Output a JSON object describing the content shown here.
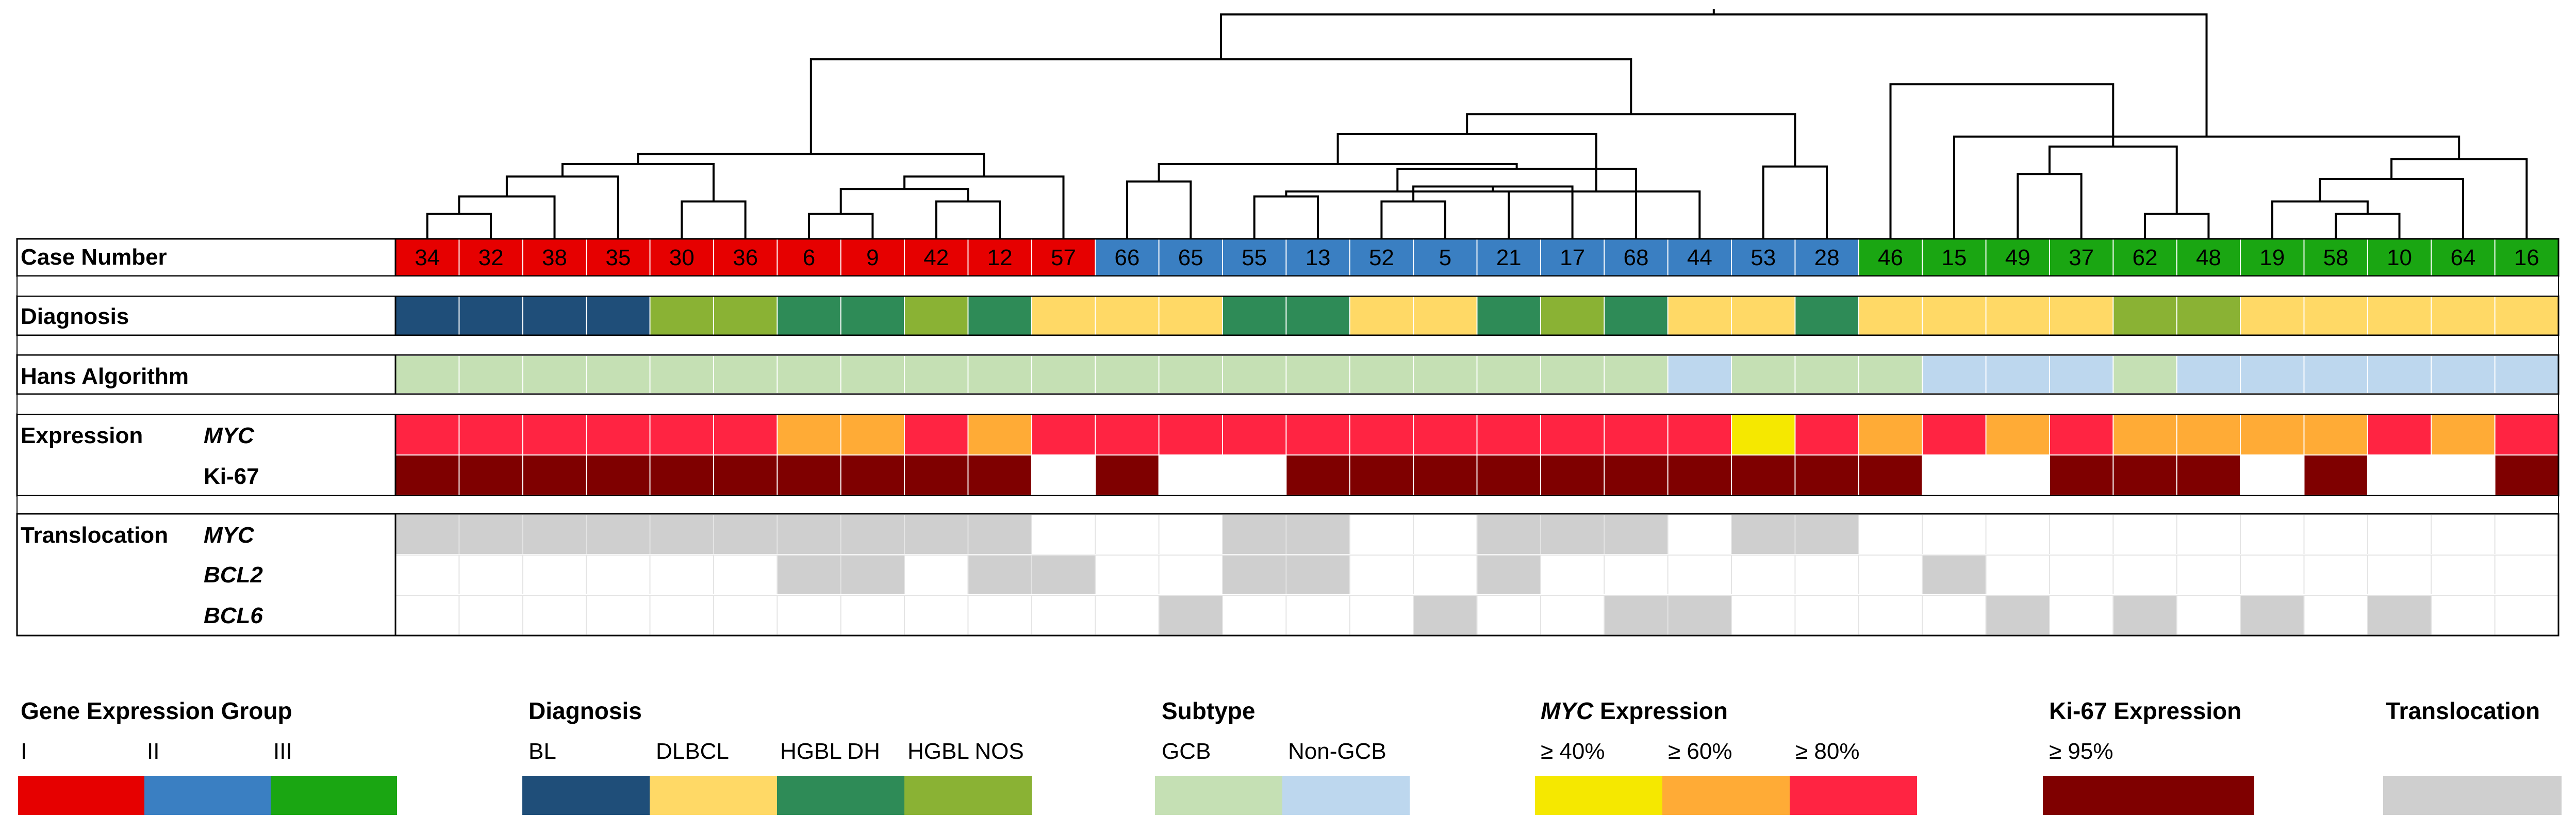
{
  "rows": {
    "case_number": "Case Number",
    "diagnosis": "Diagnosis",
    "hans": "Hans Algorithm",
    "expression": "Expression",
    "expr_myc": "MYC",
    "expr_ki67": "Ki-67",
    "translocation": "Translocation",
    "trans_myc": "MYC",
    "trans_bcl2": "BCL2",
    "trans_bcl6": "BCL6"
  },
  "colors": {
    "group": {
      "I": "#e60000",
      "II": "#3a7fc2",
      "III": "#1aa612"
    },
    "diagnosis": {
      "BL": "#1f4e79",
      "DLBCL": "#ffd966",
      "HGBL DH": "#2e8b57",
      "HGBL NOS": "#8ab234"
    },
    "subtype": {
      "GCB": "#c5e0b4",
      "Non-GCB": "#bdd7ee"
    },
    "myc": {
      "40": "#f5e800",
      "60": "#ffab36",
      "80": "#ff2442",
      "0": "#ffffff"
    },
    "ki67": {
      "95": "#7f0000",
      "0": "#ffffff"
    },
    "translocation": {
      "1": "#cfcfcf",
      "0": "#ffffff"
    }
  },
  "cases": [
    {
      "id": "34",
      "group": "I",
      "dx": "BL",
      "hans": "GCB",
      "myc": "80",
      "ki67": "95",
      "t_myc": 1,
      "t_bcl2": 0,
      "t_bcl6": 0
    },
    {
      "id": "32",
      "group": "I",
      "dx": "BL",
      "hans": "GCB",
      "myc": "80",
      "ki67": "95",
      "t_myc": 1,
      "t_bcl2": 0,
      "t_bcl6": 0
    },
    {
      "id": "38",
      "group": "I",
      "dx": "BL",
      "hans": "GCB",
      "myc": "80",
      "ki67": "95",
      "t_myc": 1,
      "t_bcl2": 0,
      "t_bcl6": 0
    },
    {
      "id": "35",
      "group": "I",
      "dx": "BL",
      "hans": "GCB",
      "myc": "80",
      "ki67": "95",
      "t_myc": 1,
      "t_bcl2": 0,
      "t_bcl6": 0
    },
    {
      "id": "30",
      "group": "I",
      "dx": "HGBL NOS",
      "hans": "GCB",
      "myc": "80",
      "ki67": "95",
      "t_myc": 1,
      "t_bcl2": 0,
      "t_bcl6": 0
    },
    {
      "id": "36",
      "group": "I",
      "dx": "HGBL NOS",
      "hans": "GCB",
      "myc": "80",
      "ki67": "95",
      "t_myc": 1,
      "t_bcl2": 0,
      "t_bcl6": 0
    },
    {
      "id": "6",
      "group": "I",
      "dx": "HGBL DH",
      "hans": "GCB",
      "myc": "60",
      "ki67": "95",
      "t_myc": 1,
      "t_bcl2": 1,
      "t_bcl6": 0
    },
    {
      "id": "9",
      "group": "I",
      "dx": "HGBL DH",
      "hans": "GCB",
      "myc": "60",
      "ki67": "95",
      "t_myc": 1,
      "t_bcl2": 1,
      "t_bcl6": 0
    },
    {
      "id": "42",
      "group": "I",
      "dx": "HGBL NOS",
      "hans": "GCB",
      "myc": "80",
      "ki67": "95",
      "t_myc": 1,
      "t_bcl2": 0,
      "t_bcl6": 0
    },
    {
      "id": "12",
      "group": "I",
      "dx": "HGBL DH",
      "hans": "GCB",
      "myc": "60",
      "ki67": "95",
      "t_myc": 1,
      "t_bcl2": 1,
      "t_bcl6": 0
    },
    {
      "id": "57",
      "group": "I",
      "dx": "DLBCL",
      "hans": "GCB",
      "myc": "80",
      "ki67": "0",
      "t_myc": 0,
      "t_bcl2": 1,
      "t_bcl6": 0
    },
    {
      "id": "66",
      "group": "II",
      "dx": "DLBCL",
      "hans": "GCB",
      "myc": "80",
      "ki67": "95",
      "t_myc": 0,
      "t_bcl2": 0,
      "t_bcl6": 0
    },
    {
      "id": "65",
      "group": "II",
      "dx": "DLBCL",
      "hans": "GCB",
      "myc": "80",
      "ki67": "0",
      "t_myc": 0,
      "t_bcl2": 0,
      "t_bcl6": 1
    },
    {
      "id": "55",
      "group": "II",
      "dx": "HGBL DH",
      "hans": "GCB",
      "myc": "80",
      "ki67": "0",
      "t_myc": 1,
      "t_bcl2": 1,
      "t_bcl6": 0
    },
    {
      "id": "13",
      "group": "II",
      "dx": "HGBL DH",
      "hans": "GCB",
      "myc": "80",
      "ki67": "95",
      "t_myc": 1,
      "t_bcl2": 1,
      "t_bcl6": 0
    },
    {
      "id": "52",
      "group": "II",
      "dx": "DLBCL",
      "hans": "GCB",
      "myc": "80",
      "ki67": "95",
      "t_myc": 0,
      "t_bcl2": 0,
      "t_bcl6": 0
    },
    {
      "id": "5",
      "group": "II",
      "dx": "DLBCL",
      "hans": "GCB",
      "myc": "80",
      "ki67": "95",
      "t_myc": 0,
      "t_bcl2": 0,
      "t_bcl6": 1
    },
    {
      "id": "21",
      "group": "II",
      "dx": "HGBL DH",
      "hans": "GCB",
      "myc": "80",
      "ki67": "95",
      "t_myc": 1,
      "t_bcl2": 1,
      "t_bcl6": 0
    },
    {
      "id": "17",
      "group": "II",
      "dx": "HGBL NOS",
      "hans": "GCB",
      "myc": "80",
      "ki67": "95",
      "t_myc": 1,
      "t_bcl2": 0,
      "t_bcl6": 0
    },
    {
      "id": "68",
      "group": "II",
      "dx": "HGBL DH",
      "hans": "GCB",
      "myc": "80",
      "ki67": "95",
      "t_myc": 1,
      "t_bcl2": 0,
      "t_bcl6": 1
    },
    {
      "id": "44",
      "group": "II",
      "dx": "DLBCL",
      "hans": "Non-GCB",
      "myc": "80",
      "ki67": "95",
      "t_myc": 0,
      "t_bcl2": 0,
      "t_bcl6": 1
    },
    {
      "id": "53",
      "group": "II",
      "dx": "DLBCL",
      "hans": "GCB",
      "myc": "40",
      "ki67": "95",
      "t_myc": 1,
      "t_bcl2": 0,
      "t_bcl6": 0
    },
    {
      "id": "28",
      "group": "II",
      "dx": "HGBL DH",
      "hans": "GCB",
      "myc": "80",
      "ki67": "95",
      "t_myc": 1,
      "t_bcl2": 0,
      "t_bcl6": 0
    },
    {
      "id": "46",
      "group": "III",
      "dx": "DLBCL",
      "hans": "GCB",
      "myc": "60",
      "ki67": "95",
      "t_myc": 0,
      "t_bcl2": 0,
      "t_bcl6": 0
    },
    {
      "id": "15",
      "group": "III",
      "dx": "DLBCL",
      "hans": "Non-GCB",
      "myc": "80",
      "ki67": "0",
      "t_myc": 0,
      "t_bcl2": 1,
      "t_bcl6": 0
    },
    {
      "id": "49",
      "group": "III",
      "dx": "DLBCL",
      "hans": "Non-GCB",
      "myc": "60",
      "ki67": "0",
      "t_myc": 0,
      "t_bcl2": 0,
      "t_bcl6": 1
    },
    {
      "id": "37",
      "group": "III",
      "dx": "DLBCL",
      "hans": "Non-GCB",
      "myc": "80",
      "ki67": "95",
      "t_myc": 0,
      "t_bcl2": 0,
      "t_bcl6": 0
    },
    {
      "id": "62",
      "group": "III",
      "dx": "HGBL NOS",
      "hans": "GCB",
      "myc": "60",
      "ki67": "95",
      "t_myc": 0,
      "t_bcl2": 0,
      "t_bcl6": 1
    },
    {
      "id": "48",
      "group": "III",
      "dx": "HGBL NOS",
      "hans": "Non-GCB",
      "myc": "60",
      "ki67": "95",
      "t_myc": 0,
      "t_bcl2": 0,
      "t_bcl6": 0
    },
    {
      "id": "19",
      "group": "III",
      "dx": "DLBCL",
      "hans": "Non-GCB",
      "myc": "60",
      "ki67": "0",
      "t_myc": 0,
      "t_bcl2": 0,
      "t_bcl6": 1
    },
    {
      "id": "58",
      "group": "III",
      "dx": "DLBCL",
      "hans": "Non-GCB",
      "myc": "60",
      "ki67": "95",
      "t_myc": 0,
      "t_bcl2": 0,
      "t_bcl6": 0
    },
    {
      "id": "10",
      "group": "III",
      "dx": "DLBCL",
      "hans": "Non-GCB",
      "myc": "80",
      "ki67": "0",
      "t_myc": 0,
      "t_bcl2": 0,
      "t_bcl6": 1
    },
    {
      "id": "64",
      "group": "III",
      "dx": "DLBCL",
      "hans": "Non-GCB",
      "myc": "60",
      "ki67": "0",
      "t_myc": 0,
      "t_bcl2": 0,
      "t_bcl6": 0
    },
    {
      "id": "16",
      "group": "III",
      "dx": "DLBCL",
      "hans": "Non-GCB",
      "myc": "80",
      "ki67": "95",
      "t_myc": 0,
      "t_bcl2": 0,
      "t_bcl6": 0
    }
  ],
  "dendrogram": [
    [
      0,
      1,
      1.0
    ],
    [
      34,
      2,
      1.7
    ],
    [
      35,
      3,
      2.5
    ],
    [
      4,
      5,
      1.5
    ],
    [
      36,
      37,
      3.0
    ],
    [
      6,
      7,
      1.0
    ],
    [
      8,
      9,
      1.5
    ],
    [
      39,
      40,
      2.0
    ],
    [
      41,
      10,
      2.5
    ],
    [
      38,
      42,
      3.4
    ],
    [
      11,
      12,
      2.3
    ],
    [
      13,
      14,
      1.7
    ],
    [
      15,
      16,
      1.5
    ],
    [
      45,
      17,
      1.9
    ],
    [
      46,
      18,
      2.1
    ],
    [
      47,
      19,
      2.8
    ],
    [
      48,
      20,
      1.9
    ],
    [
      44,
      49,
      3.0
    ],
    [
      50,
      51,
      4.2
    ],
    [
      21,
      22,
      2.9
    ],
    [
      52,
      53,
      5.0
    ],
    [
      43,
      54,
      7.2
    ],
    [
      27,
      28,
      1.0
    ],
    [
      30,
      31,
      1.0
    ],
    [
      29,
      57,
      1.5
    ],
    [
      58,
      32,
      2.4
    ],
    [
      25,
      26,
      2.6
    ],
    [
      59,
      33,
      3.2
    ],
    [
      56,
      60,
      3.7
    ],
    [
      61,
      24,
      4.1
    ],
    [
      62,
      23,
      6.2
    ],
    [
      55,
      63,
      9.0
    ]
  ],
  "legend": {
    "group": {
      "title": "Gene Expression Group",
      "items": [
        "I",
        "II",
        "III"
      ]
    },
    "diagnosis": {
      "title": "Diagnosis",
      "items": [
        "BL",
        "DLBCL",
        "HGBL DH",
        "HGBL NOS"
      ]
    },
    "subtype": {
      "title": "Subtype",
      "items": [
        "GCB",
        "Non-GCB"
      ]
    },
    "myc": {
      "title_italic": "MYC",
      "title_rest": " Expression",
      "items": [
        "≥ 40%",
        "≥ 60%",
        "≥ 80%"
      ]
    },
    "ki67": {
      "title": "Ki-67 Expression",
      "items": [
        "≥ 95%"
      ]
    },
    "translocation": {
      "title": "Translocation"
    }
  }
}
